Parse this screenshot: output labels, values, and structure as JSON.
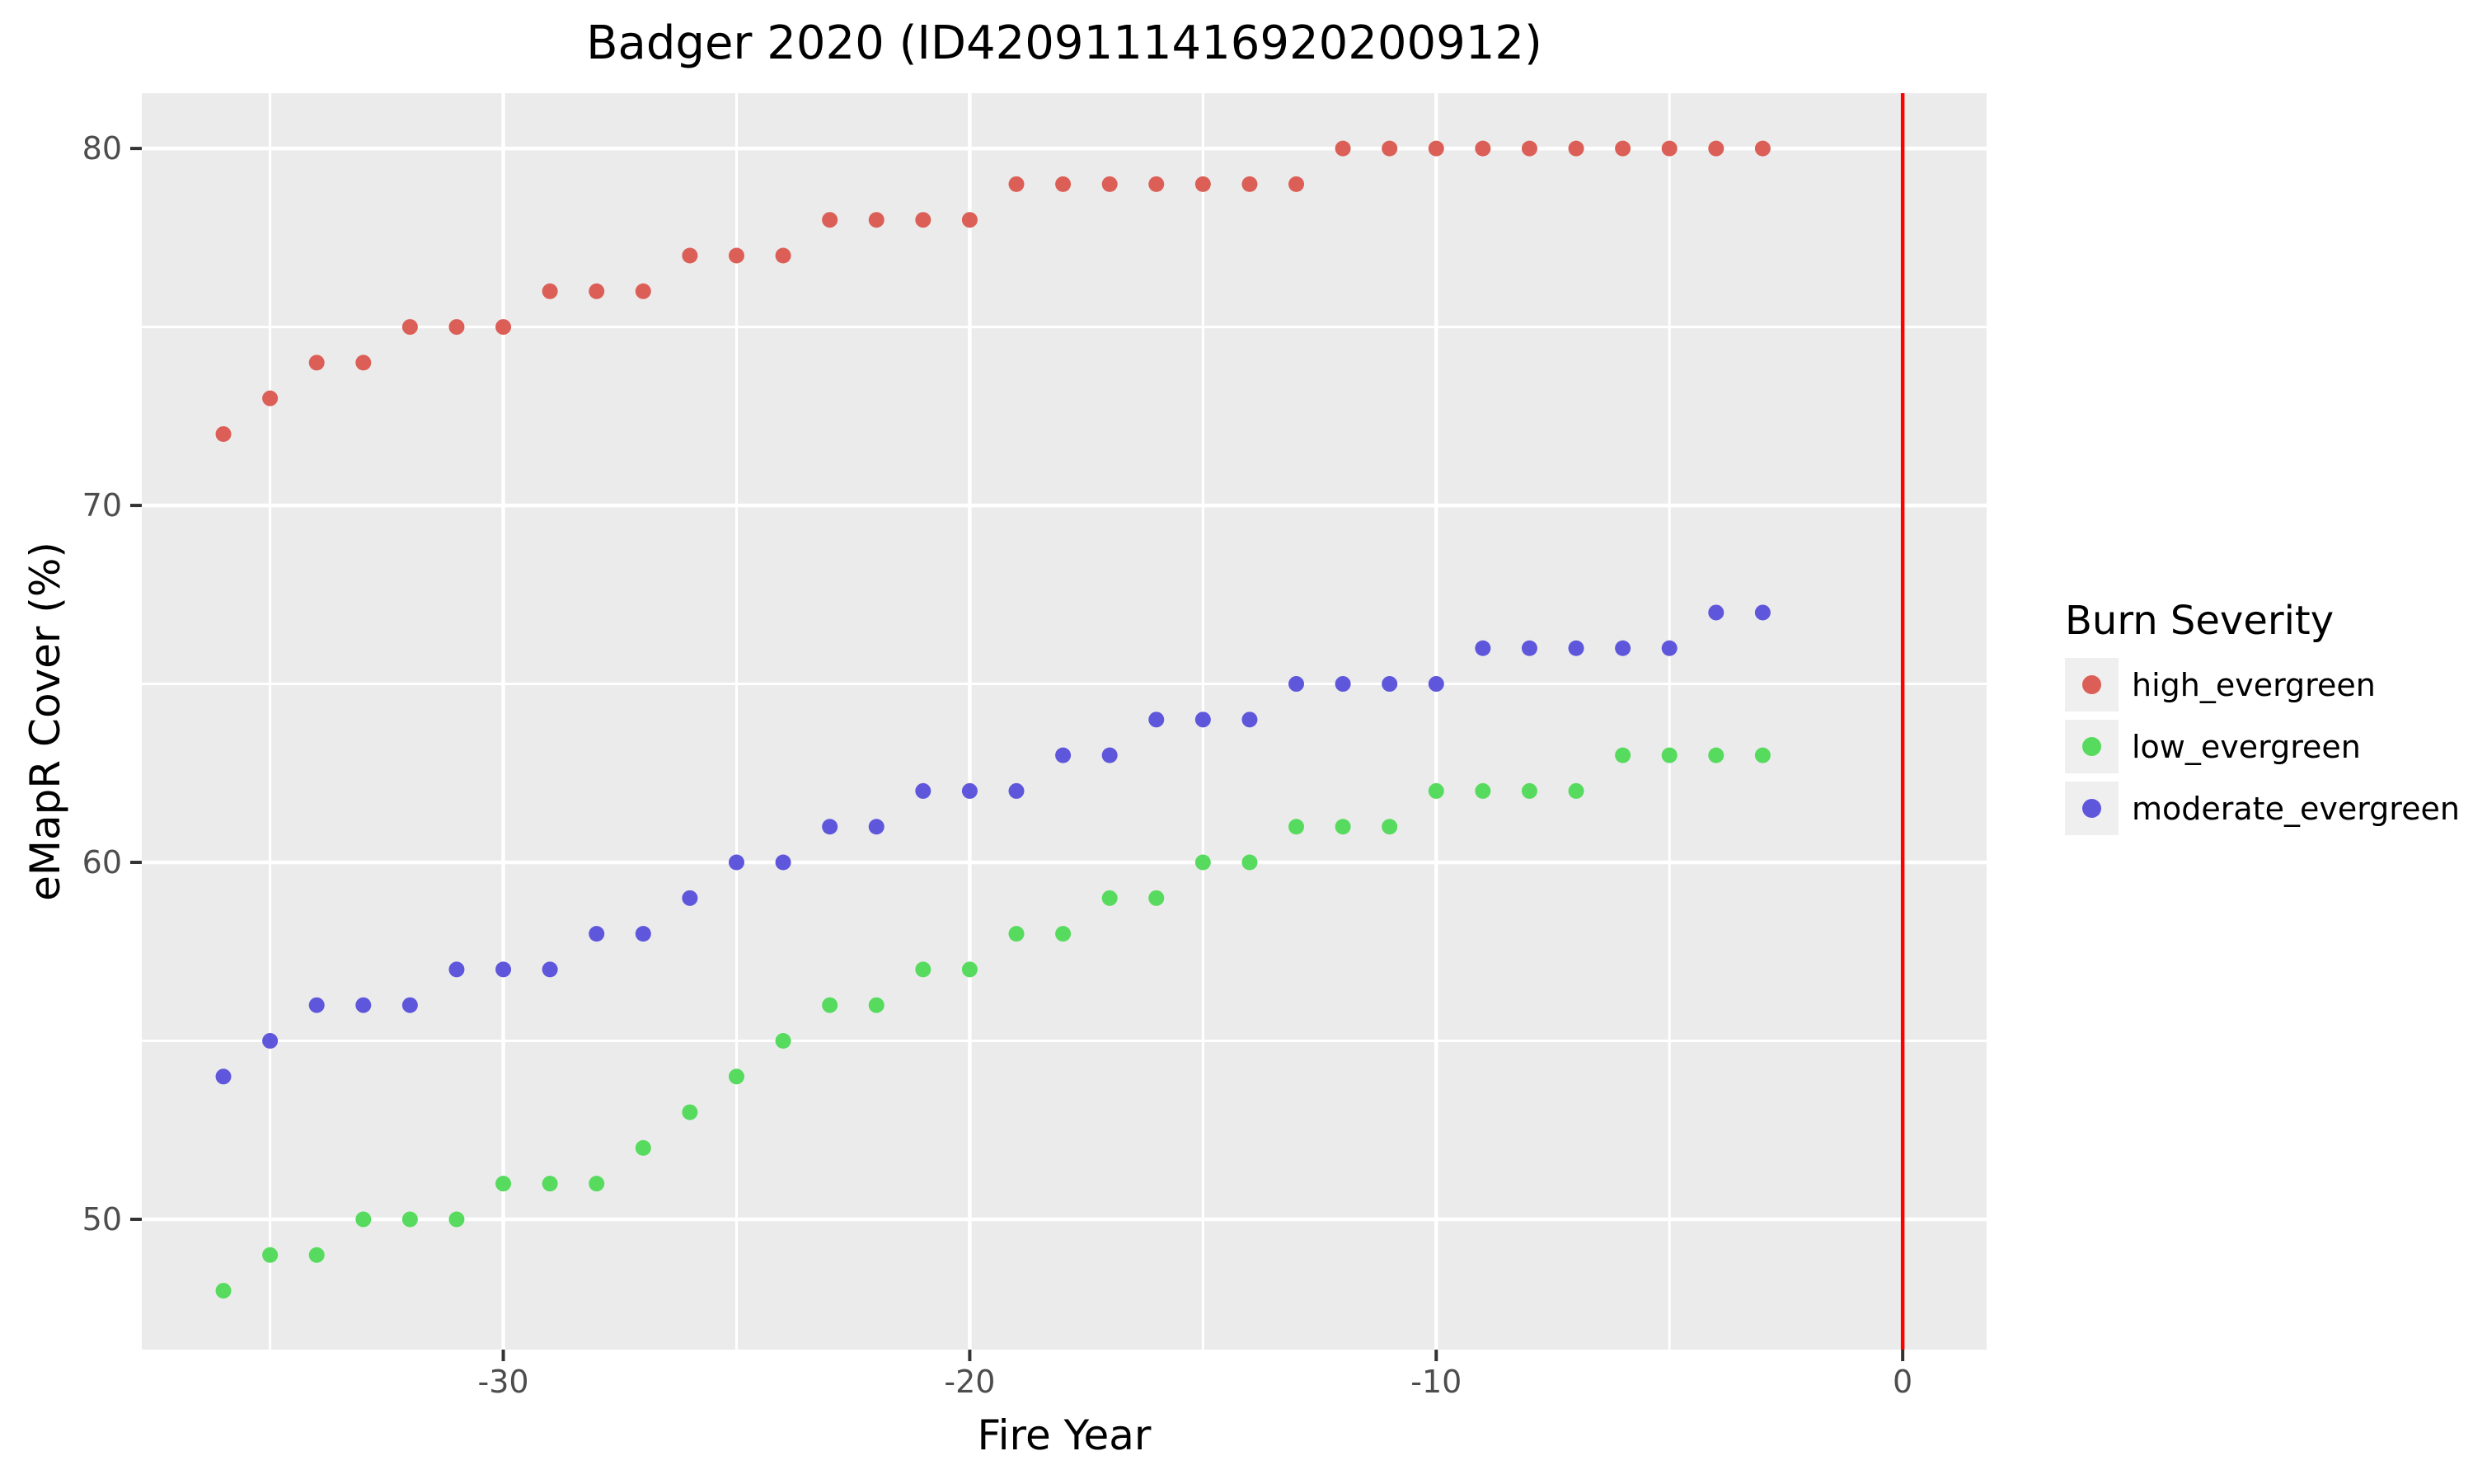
{
  "chart": {
    "title": "Badger 2020 (ID4209111416920200912)",
    "xlabel": "Fire Year",
    "ylabel": "eMapR Cover (%)"
  },
  "legend": {
    "title": "Burn Severity",
    "entries": [
      {
        "label": "high_evergreen",
        "color": "#DB5F57"
      },
      {
        "label": "low_evergreen",
        "color": "#57DB5F"
      },
      {
        "label": "moderate_evergreen",
        "color": "#5F57DB"
      }
    ]
  },
  "chart_data": {
    "type": "scatter",
    "title": "Badger 2020 (ID4209111416920200912)",
    "xlabel": "Fire Year",
    "ylabel": "eMapR Cover (%)",
    "legend_title": "Burn Severity",
    "x": [
      -36,
      -35,
      -34,
      -33,
      -32,
      -31,
      -30,
      -29,
      -28,
      -27,
      -26,
      -25,
      -24,
      -23,
      -22,
      -21,
      -20,
      -19,
      -18,
      -17,
      -16,
      -15,
      -14,
      -13,
      -12,
      -11,
      -10,
      -9,
      -8,
      -7,
      -6,
      -5,
      -4,
      -3
    ],
    "series": [
      {
        "name": "high_evergreen",
        "color": "#DB5F57",
        "values": [
          72,
          73,
          74,
          74,
          75,
          75,
          75,
          76,
          76,
          76,
          77,
          77,
          77,
          78,
          78,
          78,
          78,
          79,
          79,
          79,
          79,
          79,
          79,
          79,
          80,
          80,
          80,
          80,
          80,
          80,
          80,
          80,
          80,
          80
        ]
      },
      {
        "name": "low_evergreen",
        "color": "#57DB5F",
        "values": [
          48,
          49,
          49,
          50,
          50,
          50,
          51,
          51,
          51,
          52,
          53,
          54,
          55,
          56,
          56,
          57,
          57,
          58,
          58,
          59,
          59,
          60,
          60,
          61,
          61,
          61,
          62,
          62,
          62,
          62,
          63,
          63,
          63,
          63
        ]
      },
      {
        "name": "moderate_evergreen",
        "color": "#5F57DB",
        "values": [
          54,
          55,
          56,
          56,
          56,
          57,
          57,
          57,
          58,
          58,
          59,
          60,
          60,
          61,
          61,
          62,
          62,
          62,
          63,
          63,
          64,
          64,
          64,
          65,
          65,
          65,
          65,
          66,
          66,
          66,
          66,
          66,
          67,
          67
        ]
      }
    ],
    "vline": {
      "x": 0,
      "color": "#FF0000"
    },
    "xlim": [
      -37.75,
      1.8
    ],
    "ylim": [
      46.35,
      81.55
    ],
    "x_major_ticks": [
      -30,
      -20,
      -10,
      0
    ],
    "x_minor_gridlines": [
      -35,
      -25,
      -15,
      -5
    ],
    "y_major_ticks": [
      50,
      60,
      70,
      80
    ],
    "y_minor_gridlines": [
      55,
      65,
      75
    ],
    "grid": "on",
    "legend_position": "right",
    "panel_bg": "#EBEBEB",
    "grid_color": "#FFFFFF",
    "tick_label_color": "#4D4D4D",
    "tick_mark_color": "#333333",
    "point_radius": 9.5
  }
}
